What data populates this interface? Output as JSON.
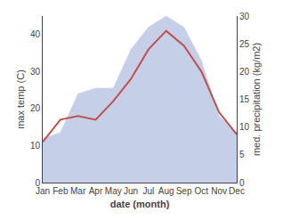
{
  "chart_data": {
    "type": "line",
    "xlabel": "date (month)",
    "ylabel": "max temp (C)",
    "y2label": "med. precipitation (kg/m2)",
    "categories": [
      "Jan",
      "Feb",
      "Mar",
      "Apr",
      "May",
      "Jun",
      "Jul",
      "Aug",
      "Sep",
      "Oct",
      "Nov",
      "Dec"
    ],
    "series": [
      {
        "type": "area",
        "color": "#c5cfe8",
        "axis": "y2",
        "values": [
          8,
          9,
          16,
          17,
          17,
          24,
          28,
          30,
          28,
          22,
          12,
          9
        ]
      },
      {
        "type": "line",
        "color": "#c0504d",
        "values": [
          11,
          17,
          18,
          17,
          22,
          28,
          36,
          41,
          37,
          30,
          19,
          13
        ]
      }
    ],
    "ylim": [
      0,
      45
    ],
    "yticks": [
      0,
      10,
      20,
      30,
      40
    ],
    "y2lim": [
      0,
      30
    ],
    "y2ticks": [
      0,
      5,
      10,
      15,
      20,
      25,
      30
    ],
    "grid": false
  }
}
